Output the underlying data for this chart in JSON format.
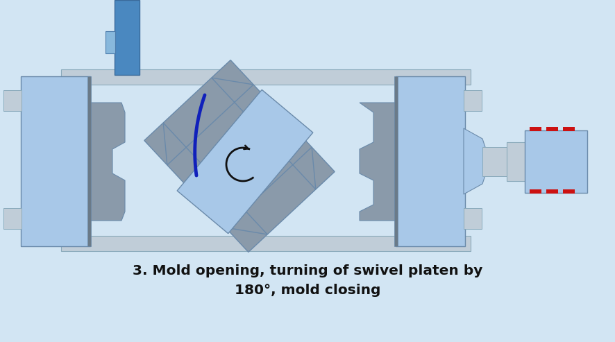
{
  "bg_color": "#d2e5f3",
  "title_line1": "3. Mold opening, turning of swivel platen by",
  "title_line2": "180°, mold closing",
  "title_color": "#111111",
  "title_fontsize": 14.5,
  "light_blue": "#a8c8e8",
  "mid_blue": "#88b8dc",
  "dark_blue": "#4a88c0",
  "gray": "#8a9aaa",
  "light_gray": "#c0cdd8",
  "dark_gray": "#6a7a88",
  "red": "#cc1111",
  "border_color": "#6a8aaa",
  "border_color2": "#8aaabb"
}
